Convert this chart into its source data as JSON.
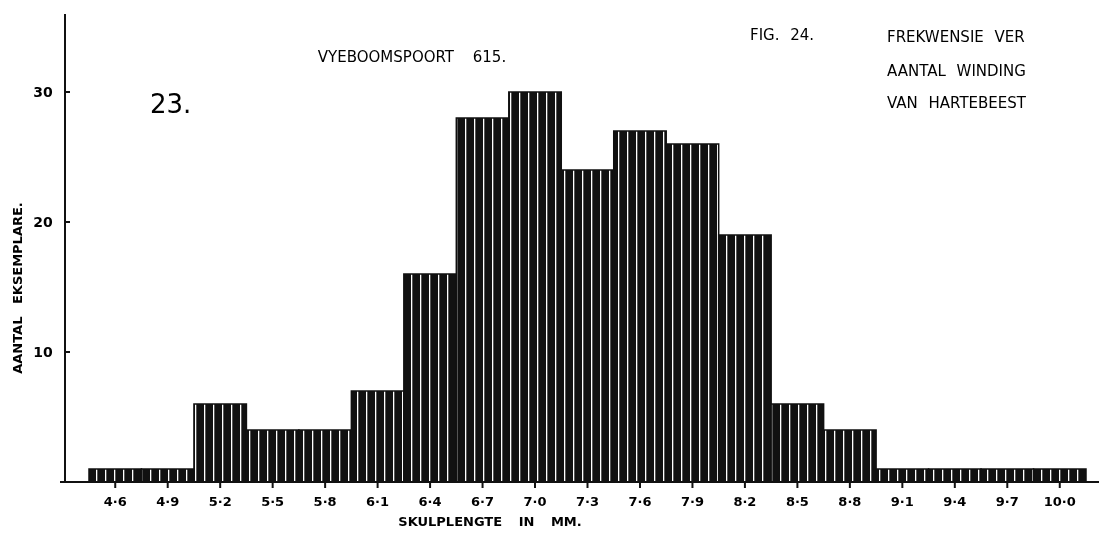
{
  "chart_data": {
    "type": "bar",
    "title": "VYEBOOMSPOORT 615.",
    "xlabel": "SKULPLENGTE IN MM.",
    "ylabel": "AANTAL EKSEMPLARE.",
    "annotations": [
      "23.",
      "FIG. 24.",
      "FREKWENSIE VER",
      "AANTAL WINDING",
      "VAN HARTEBEEST"
    ],
    "categories": [
      "4·6",
      "4·9",
      "5·2",
      "5·5",
      "5·8",
      "6·1",
      "6·4",
      "6·7",
      "7·0",
      "7·3",
      "7·6",
      "7·9",
      "8·2",
      "8·5",
      "8·8",
      "9·1",
      "9·4",
      "9·7",
      "10·0"
    ],
    "values": [
      1,
      1,
      6,
      4,
      4,
      7,
      16,
      28,
      30,
      24,
      27,
      26,
      19,
      6,
      4,
      1,
      1,
      1,
      1
    ],
    "color": "#111111",
    "ylim": [
      0,
      36
    ],
    "yticks": [
      10,
      20,
      30
    ],
    "grid": false
  }
}
